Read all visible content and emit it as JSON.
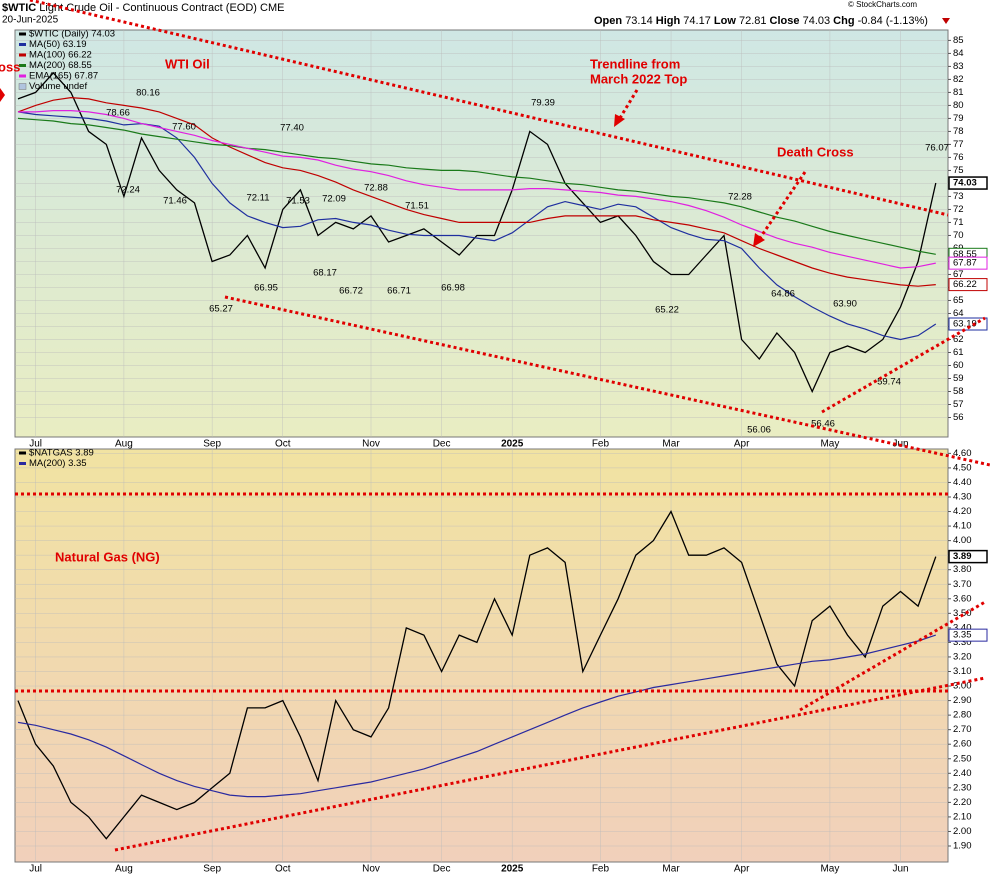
{
  "header": {
    "title": "$WTIC",
    "subtitle": "Light Crude Oil - Continuous Contract (EOD) CME",
    "date": "20-Jun-2025",
    "quote": [
      {
        "label": "Open",
        "value": 73.14
      },
      {
        "label": "High",
        "value": 74.17
      },
      {
        "label": "Low",
        "value": 72.81
      },
      {
        "label": "Close",
        "value": 74.03
      }
    ],
    "change_label": "Chg",
    "change": "-0.84 (-1.13%)",
    "source": "© StockCharts.com"
  },
  "chart_data": [
    {
      "type": "line",
      "grid": true,
      "volume_label": "Volume undef",
      "categories": [
        null,
        "Jul",
        null,
        null,
        null,
        null,
        "Aug",
        null,
        null,
        null,
        null,
        "Sep",
        null,
        null,
        null,
        "Oct",
        null,
        null,
        null,
        null,
        "Nov",
        null,
        null,
        null,
        "Dec",
        null,
        null,
        null,
        "2025",
        null,
        null,
        null,
        null,
        "Feb",
        null,
        null,
        null,
        "Mar",
        null,
        null,
        null,
        "Apr",
        null,
        null,
        null,
        null,
        "May",
        null,
        null,
        null,
        "Jun",
        null,
        null
      ],
      "ylim": [
        54.5,
        85.8
      ],
      "yticks": [
        56,
        57,
        58,
        59,
        60,
        61,
        62,
        63,
        64,
        65,
        66,
        67,
        68,
        69,
        70,
        71,
        72,
        73,
        74,
        75,
        76,
        77,
        78,
        79,
        80,
        81,
        82,
        83,
        84,
        85
      ],
      "series": [
        {
          "name": "$WTIC (Daily) 74.03",
          "color": "#000000",
          "values": [
            80.5,
            81,
            82.5,
            81,
            78,
            77,
            73,
            77.5,
            75,
            73.5,
            72.5,
            68,
            68.5,
            70,
            67.5,
            72,
            73.5,
            70,
            71,
            70.5,
            71.5,
            69.5,
            70,
            70.5,
            69.5,
            68.5,
            70,
            70,
            73.5,
            78,
            77,
            74,
            72.5,
            71,
            71.5,
            70,
            68,
            67,
            67,
            68.5,
            70,
            62,
            60.5,
            62.5,
            61,
            58,
            61,
            61.5,
            61,
            62,
            64.5,
            68,
            74.03
          ]
        },
        {
          "name": "MA(50) 63.19",
          "color": "#1f2f9f",
          "values": [
            79.5,
            79.3,
            79.2,
            79.1,
            79,
            78.8,
            78.5,
            78.6,
            78.4,
            77.5,
            76,
            74,
            72.5,
            71.5,
            71,
            70.6,
            70.7,
            71.2,
            71.3,
            71,
            70.8,
            70.4,
            70.1,
            70,
            70,
            70,
            69.8,
            69.6,
            70.2,
            71.2,
            72.2,
            72.6,
            72.3,
            72,
            72.4,
            72.2,
            71.4,
            70.6,
            70.1,
            69.7,
            69.6,
            69,
            67.5,
            66.2,
            65.3,
            64.5,
            63.8,
            63.2,
            62.8,
            62.3,
            62,
            62.3,
            63.19
          ]
        },
        {
          "name": "MA(100) 66.22",
          "color": "#c00000",
          "values": [
            79.5,
            80,
            80.4,
            80.6,
            80.5,
            80.2,
            80,
            79.8,
            79.5,
            79,
            78.5,
            77.5,
            76.8,
            76.2,
            75.6,
            75.2,
            75,
            74.6,
            74.1,
            73.5,
            73,
            72.5,
            72,
            71.6,
            71.3,
            71,
            71,
            71,
            71,
            71,
            71.3,
            71.5,
            71.5,
            71.5,
            71.5,
            71.5,
            71.2,
            71,
            70.8,
            70.5,
            70.2,
            69.6,
            69,
            68.5,
            68,
            67.5,
            67.1,
            66.8,
            66.6,
            66.4,
            66.2,
            66.1,
            66.22
          ]
        },
        {
          "name": "MA(200) 68.55",
          "color": "#1a7a1a",
          "values": [
            79,
            78.9,
            78.8,
            78.6,
            78.5,
            78.3,
            78.1,
            77.8,
            77.6,
            77.4,
            77.2,
            77,
            76.9,
            76.7,
            76.6,
            76.4,
            76.2,
            76,
            75.9,
            75.7,
            75.5,
            75.4,
            75.2,
            75.1,
            75,
            75,
            74.9,
            74.7,
            74.5,
            74.4,
            74.2,
            74,
            73.9,
            73.7,
            73.5,
            73.4,
            73.2,
            73,
            72.9,
            72.7,
            72.5,
            72.2,
            71.8,
            71.4,
            71.1,
            70.7,
            70.3,
            70,
            69.7,
            69.4,
            69.1,
            68.8,
            68.55
          ]
        },
        {
          "name": "EMA(165) 67.87",
          "color": "#e020e0",
          "values": [
            79.5,
            79.5,
            79.6,
            79.6,
            79.5,
            79.3,
            79,
            78.6,
            78.3,
            78,
            77.7,
            77.3,
            77,
            76.7,
            76.4,
            76.1,
            76,
            75.8,
            75.4,
            75.1,
            74.9,
            74.6,
            74.2,
            73.9,
            73.7,
            73.5,
            73.5,
            73.5,
            73.5,
            73.6,
            73.6,
            73.5,
            73.4,
            73.3,
            73.1,
            73,
            72.8,
            72.6,
            72.3,
            71.9,
            71.4,
            70.8,
            70.3,
            69.8,
            69.4,
            69.1,
            68.7,
            68.4,
            68.1,
            67.8,
            67.5,
            67.6,
            67.87
          ]
        }
      ],
      "price_labels": [
        {
          "value": 78.66,
          "label": "78.66"
        },
        {
          "value": 80.16,
          "label": "80.16"
        },
        {
          "value": 77.6,
          "label": "77.60"
        },
        {
          "value": 72.24,
          "label": "72.24"
        },
        {
          "value": 71.46,
          "label": "71.46"
        },
        {
          "value": 65.27,
          "label": "65.27"
        },
        {
          "value": 72.11,
          "label": "72.11"
        },
        {
          "value": 66.95,
          "label": "66.95"
        },
        {
          "value": 77.4,
          "label": "77.40"
        },
        {
          "value": 71.53,
          "label": "71.53"
        },
        {
          "value": 72.09,
          "label": "72.09"
        },
        {
          "value": 68.17,
          "label": "68.17"
        },
        {
          "value": 72.88,
          "label": "72.88"
        },
        {
          "value": 66.72,
          "label": "66.72"
        },
        {
          "value": 71.51,
          "label": "71.51"
        },
        {
          "value": 66.71,
          "label": "66.71"
        },
        {
          "value": 66.98,
          "label": "66.98"
        },
        {
          "value": 79.39,
          "label": "79.39"
        },
        {
          "value": 65.22,
          "label": "65.22"
        },
        {
          "value": 72.28,
          "label": "72.28"
        },
        {
          "value": 64.86,
          "label": "64.86"
        },
        {
          "value": 56.06,
          "label": "56.06"
        },
        {
          "value": 63.9,
          "label": "63.90"
        },
        {
          "value": 56.46,
          "label": "56.46"
        },
        {
          "value": 59.74,
          "label": "59.74"
        },
        {
          "value": 76.07,
          "label": "76.07"
        }
      ],
      "annotations": [
        "oss",
        "WTI Oil",
        "Trendline from",
        "March 2022 Top",
        "Death Cross"
      ]
    },
    {
      "type": "line",
      "grid": true,
      "categories": [
        null,
        "Jul",
        null,
        null,
        null,
        null,
        "Aug",
        null,
        null,
        null,
        null,
        "Sep",
        null,
        null,
        null,
        "Oct",
        null,
        null,
        null,
        null,
        "Nov",
        null,
        null,
        null,
        "Dec",
        null,
        null,
        null,
        "2025",
        null,
        null,
        null,
        null,
        "Feb",
        null,
        null,
        null,
        "Mar",
        null,
        null,
        null,
        "Apr",
        null,
        null,
        null,
        null,
        "May",
        null,
        null,
        null,
        "Jun",
        null,
        null
      ],
      "ylim": [
        1.79,
        4.63
      ],
      "yticks": [
        {
          "value": 1.9,
          "label": "1.90"
        },
        {
          "value": 2.0,
          "label": "2.00"
        },
        {
          "value": 2.1,
          "label": "2.10"
        },
        {
          "value": 2.2,
          "label": "2.20"
        },
        {
          "value": 2.3,
          "label": "2.30"
        },
        {
          "value": 2.4,
          "label": "2.40"
        },
        {
          "value": 2.5,
          "label": "2.50"
        },
        {
          "value": 2.6,
          "label": "2.60"
        },
        {
          "value": 2.7,
          "label": "2.70"
        },
        {
          "value": 2.8,
          "label": "2.80"
        },
        {
          "value": 2.9,
          "label": "2.90"
        },
        {
          "value": 3.0,
          "label": "3.00"
        },
        {
          "value": 3.1,
          "label": "3.10"
        },
        {
          "value": 3.2,
          "label": "3.20"
        },
        {
          "value": 3.3,
          "label": "3.30"
        },
        {
          "value": 3.4,
          "label": "3.40"
        },
        {
          "value": 3.5,
          "label": "3.50"
        },
        {
          "value": 3.6,
          "label": "3.60"
        },
        {
          "value": 3.7,
          "label": "3.70"
        },
        {
          "value": 3.8,
          "label": "3.80"
        },
        {
          "value": 3.9,
          "label": "3.90"
        },
        {
          "value": 4.0,
          "label": "4.00"
        },
        {
          "value": 4.1,
          "label": "4.10"
        },
        {
          "value": 4.2,
          "label": "4.20"
        },
        {
          "value": 4.3,
          "label": "4.30"
        },
        {
          "value": 4.4,
          "label": "4.40"
        },
        {
          "value": 4.5,
          "label": "4.50"
        },
        {
          "value": 4.6,
          "label": "4.60"
        }
      ],
      "series": [
        {
          "name": "$NATGAS 3.89",
          "color": "#000000",
          "values": [
            2.9,
            2.6,
            2.45,
            2.2,
            2.1,
            1.95,
            2.1,
            2.25,
            2.2,
            2.15,
            2.2,
            2.3,
            2.4,
            2.85,
            2.85,
            2.9,
            2.65,
            2.35,
            2.9,
            2.7,
            2.65,
            2.85,
            3.4,
            3.35,
            3.1,
            3.35,
            3.3,
            3.6,
            3.35,
            3.9,
            3.95,
            3.85,
            3.1,
            3.35,
            3.6,
            3.9,
            4.0,
            4.2,
            3.9,
            3.9,
            3.95,
            3.85,
            3.5,
            3.15,
            3.0,
            3.45,
            3.55,
            3.35,
            3.2,
            3.55,
            3.65,
            3.55,
            3.89
          ]
        },
        {
          "name": "MA(200) 3.35",
          "color": "#2a2aa0",
          "values": [
            2.75,
            2.73,
            2.7,
            2.67,
            2.63,
            2.58,
            2.52,
            2.46,
            2.4,
            2.35,
            2.31,
            2.28,
            2.25,
            2.24,
            2.24,
            2.25,
            2.26,
            2.28,
            2.3,
            2.32,
            2.34,
            2.37,
            2.4,
            2.43,
            2.47,
            2.51,
            2.55,
            2.6,
            2.65,
            2.7,
            2.75,
            2.8,
            2.85,
            2.89,
            2.93,
            2.96,
            2.99,
            3.01,
            3.03,
            3.05,
            3.07,
            3.09,
            3.11,
            3.13,
            3.15,
            3.17,
            3.18,
            3.2,
            3.22,
            3.25,
            3.28,
            3.31,
            3.35
          ]
        }
      ],
      "annotations": [
        "Natural Gas (NG)"
      ]
    }
  ]
}
